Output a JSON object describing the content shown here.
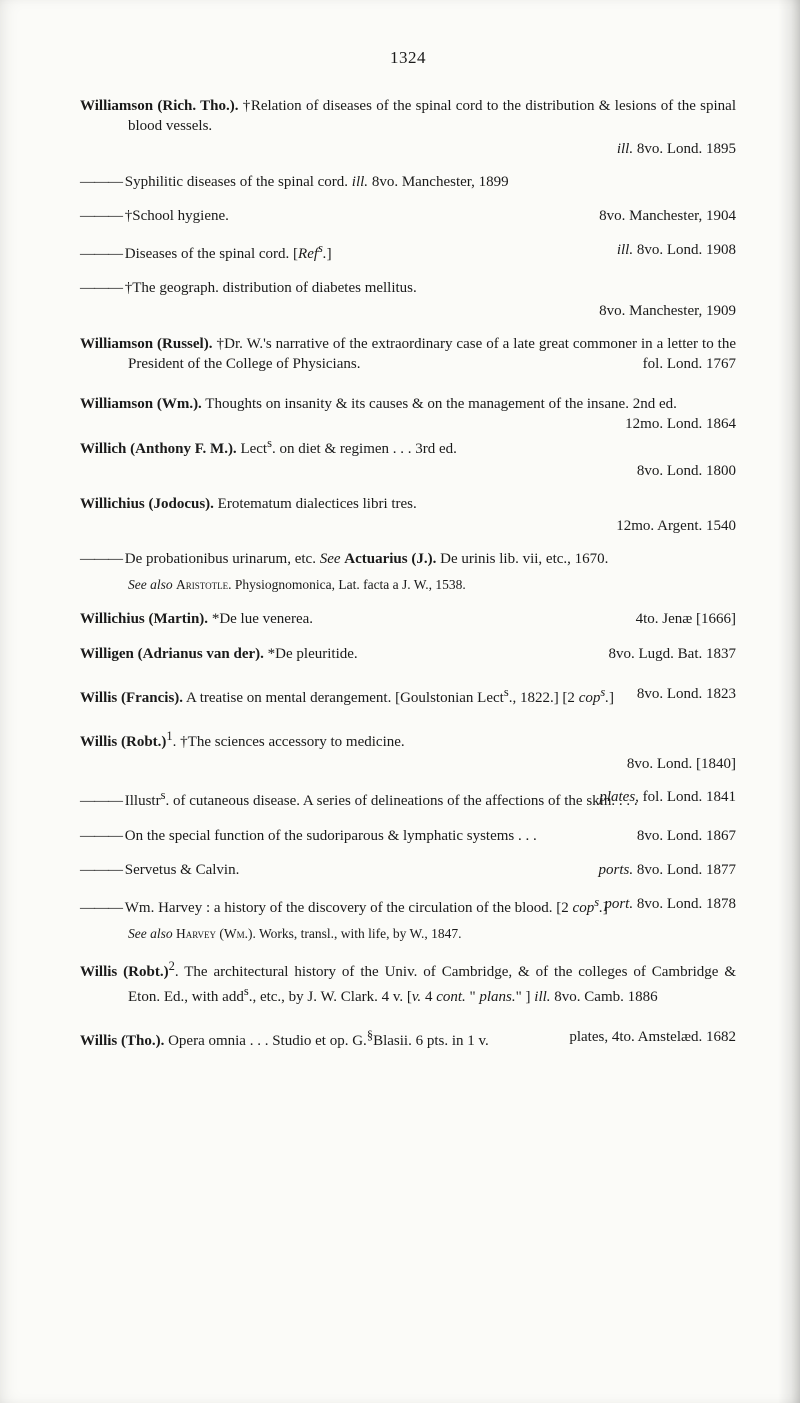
{
  "page_number": "1324",
  "entries": [
    {
      "html": "<b>Williamson (Rich. Tho.).</b> †Relation of diseases of the spinal cord to the distribution & lesions of the spinal blood vessels."
    },
    {
      "right": "<i>ill.</i> 8vo. Lond. 1895"
    },
    {
      "html": "Syphilitic diseases of the spinal cord. <i>ill.</i> 8vo. Manchester, 1899",
      "dash": true
    },
    {
      "html": "†School hygiene. <span style='float:right'>8vo. Manchester, 1904</span>",
      "dash": true
    },
    {
      "html": "Diseases of the spinal cord. [<i>Ref<sup>s</sup>.</i>] <span style='float:right'><i>ill.</i> 8vo. Lond. 1908</span>",
      "dash": true
    },
    {
      "html": "†The geograph. distribution of diabetes mellitus.",
      "dash": true
    },
    {
      "right": "8vo. Manchester, 1909"
    },
    {
      "html": "<b>Williamson (Russel).</b> †Dr. W.'s narrative of the extraordinary case of a late great commoner in a letter to the President of the College of Physicians. <span style='float:right'>fol. Lond. 1767</span>",
      "gap": true
    },
    {
      "html": "<b>Williamson (Wm.).</b> Thoughts on insanity & its causes & on the management of the insane. 2nd ed. <span style='float:right'>12mo. Lond. 1864</span>",
      "gap": true
    },
    {
      "html": "<b>Willich (Anthony F. M.).</b> Lect<sup>s</sup>. on diet & regimen . . . 3rd ed."
    },
    {
      "right": "8vo. Lond. 1800"
    },
    {
      "html": "<b>Willichius (Jodocus).</b> Erotematum dialectices libri tres."
    },
    {
      "right": "12mo. Argent. 1540"
    },
    {
      "html": "De probationibus urinarum, etc. <i>See</i> <b>Actuarius (J.).</b> De urinis lib. vii, etc., 1670.",
      "dash": true
    },
    {
      "seealso": "<i>See also</i> <span class='sc'>Aristotle</span>. Physiognomonica, Lat. facta a J. W., 1538."
    },
    {
      "html": "<b>Willichius (Martin).</b> *De lue venerea. <span style='float:right'>4to. Jenæ [1666]</span>"
    },
    {
      "html": "<b>Willigen (Adrianus van der).</b> *De pleuritide. <span style='float:right'>8vo. Lugd. Bat. 1837</span>",
      "gap": true
    },
    {
      "html": "<b>Willis (Francis).</b> A treatise on mental derangement. [Goulstonian Lect<sup>s</sup>., 1822.] [2 <i>cop<sup>s</sup>.</i>] <span style='float:right'>8vo. Lond. 1823</span>",
      "gap": true
    },
    {
      "html": "<b>Willis (Robt.)</b><sup>1</sup>. †The sciences accessory to medicine."
    },
    {
      "right": "8vo. Lond. [1840]"
    },
    {
      "html": "Illustr<sup>s</sup>. of cutaneous disease. A series of delineations of the affections of the skin. . . . <span style='float:right'><i>plates</i>, fol. Lond. 1841</span>",
      "dash": true
    },
    {
      "html": "On the special function of the sudoriparous & lymphatic systems . . . <span style='float:right'>8vo. Lond. 1867</span>",
      "dash": true
    },
    {
      "html": "Servetus & Calvin. <span style='float:right'><i>ports.</i> 8vo. Lond. 1877</span>",
      "dash": true
    },
    {
      "html": "Wm. Harvey : a history of the discovery of the circulation of the blood. [2 <i>cop<sup>s</sup>.</i>] <span style='float:right'><i>port.</i> 8vo. Lond. 1878</span>",
      "dash": true
    },
    {
      "seealso": "<i>See also</i> <span class='sc'>Harvey (Wm.)</span>. Works, transl., with life, by W., 1847."
    },
    {
      "html": "<b>Willis (Robt.)</b><sup>2</sup>. The architectural history of the Univ. of Cambridge, & of the colleges of Cambridge & Eton. Ed., with add<sup>s</sup>., etc., by J. W. Clark. 4 v. [<i>v.</i> 4 <i>cont.</i> \" <i>plans.</i>\" ] <i>ill.</i> 8vo. Camb. 1886",
      "gap": true
    },
    {
      "html": "<b>Willis (Tho.).</b> Opera omnia . . . Studio et op. G.<sup>§</sup>Blasii. 6 pts. in 1 v. <span style='float:right'>plates, 4to. Amstelæd. 1682</span>"
    }
  ]
}
